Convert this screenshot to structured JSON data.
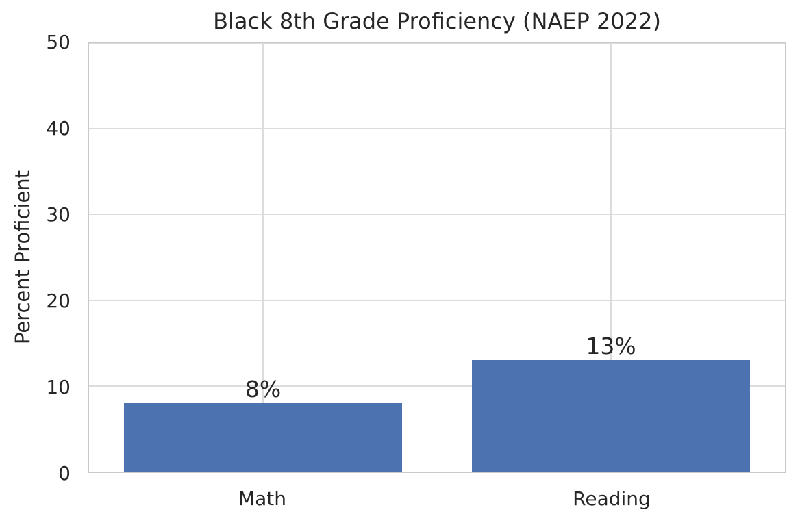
{
  "figure": {
    "background": "#ffffff"
  },
  "chart_data": {
    "type": "bar",
    "title": "Black 8th Grade Proficiency (NAEP 2022)",
    "categories": [
      "Math",
      "Reading"
    ],
    "values": [
      8,
      13
    ],
    "value_labels": [
      "8%",
      "13%"
    ],
    "xlabel": "",
    "ylabel": "Percent Proficient",
    "ylim": [
      0,
      50
    ],
    "yticks": [
      0,
      10,
      20,
      30,
      40,
      50
    ],
    "grid": "on",
    "legend": "none",
    "bar_width_fraction": 0.8,
    "colors": {
      "bar": "#4C72B0",
      "text": "#262626",
      "grid": "#dcdcdc",
      "spine": "#c9c9c9",
      "background": "#ffffff"
    }
  }
}
